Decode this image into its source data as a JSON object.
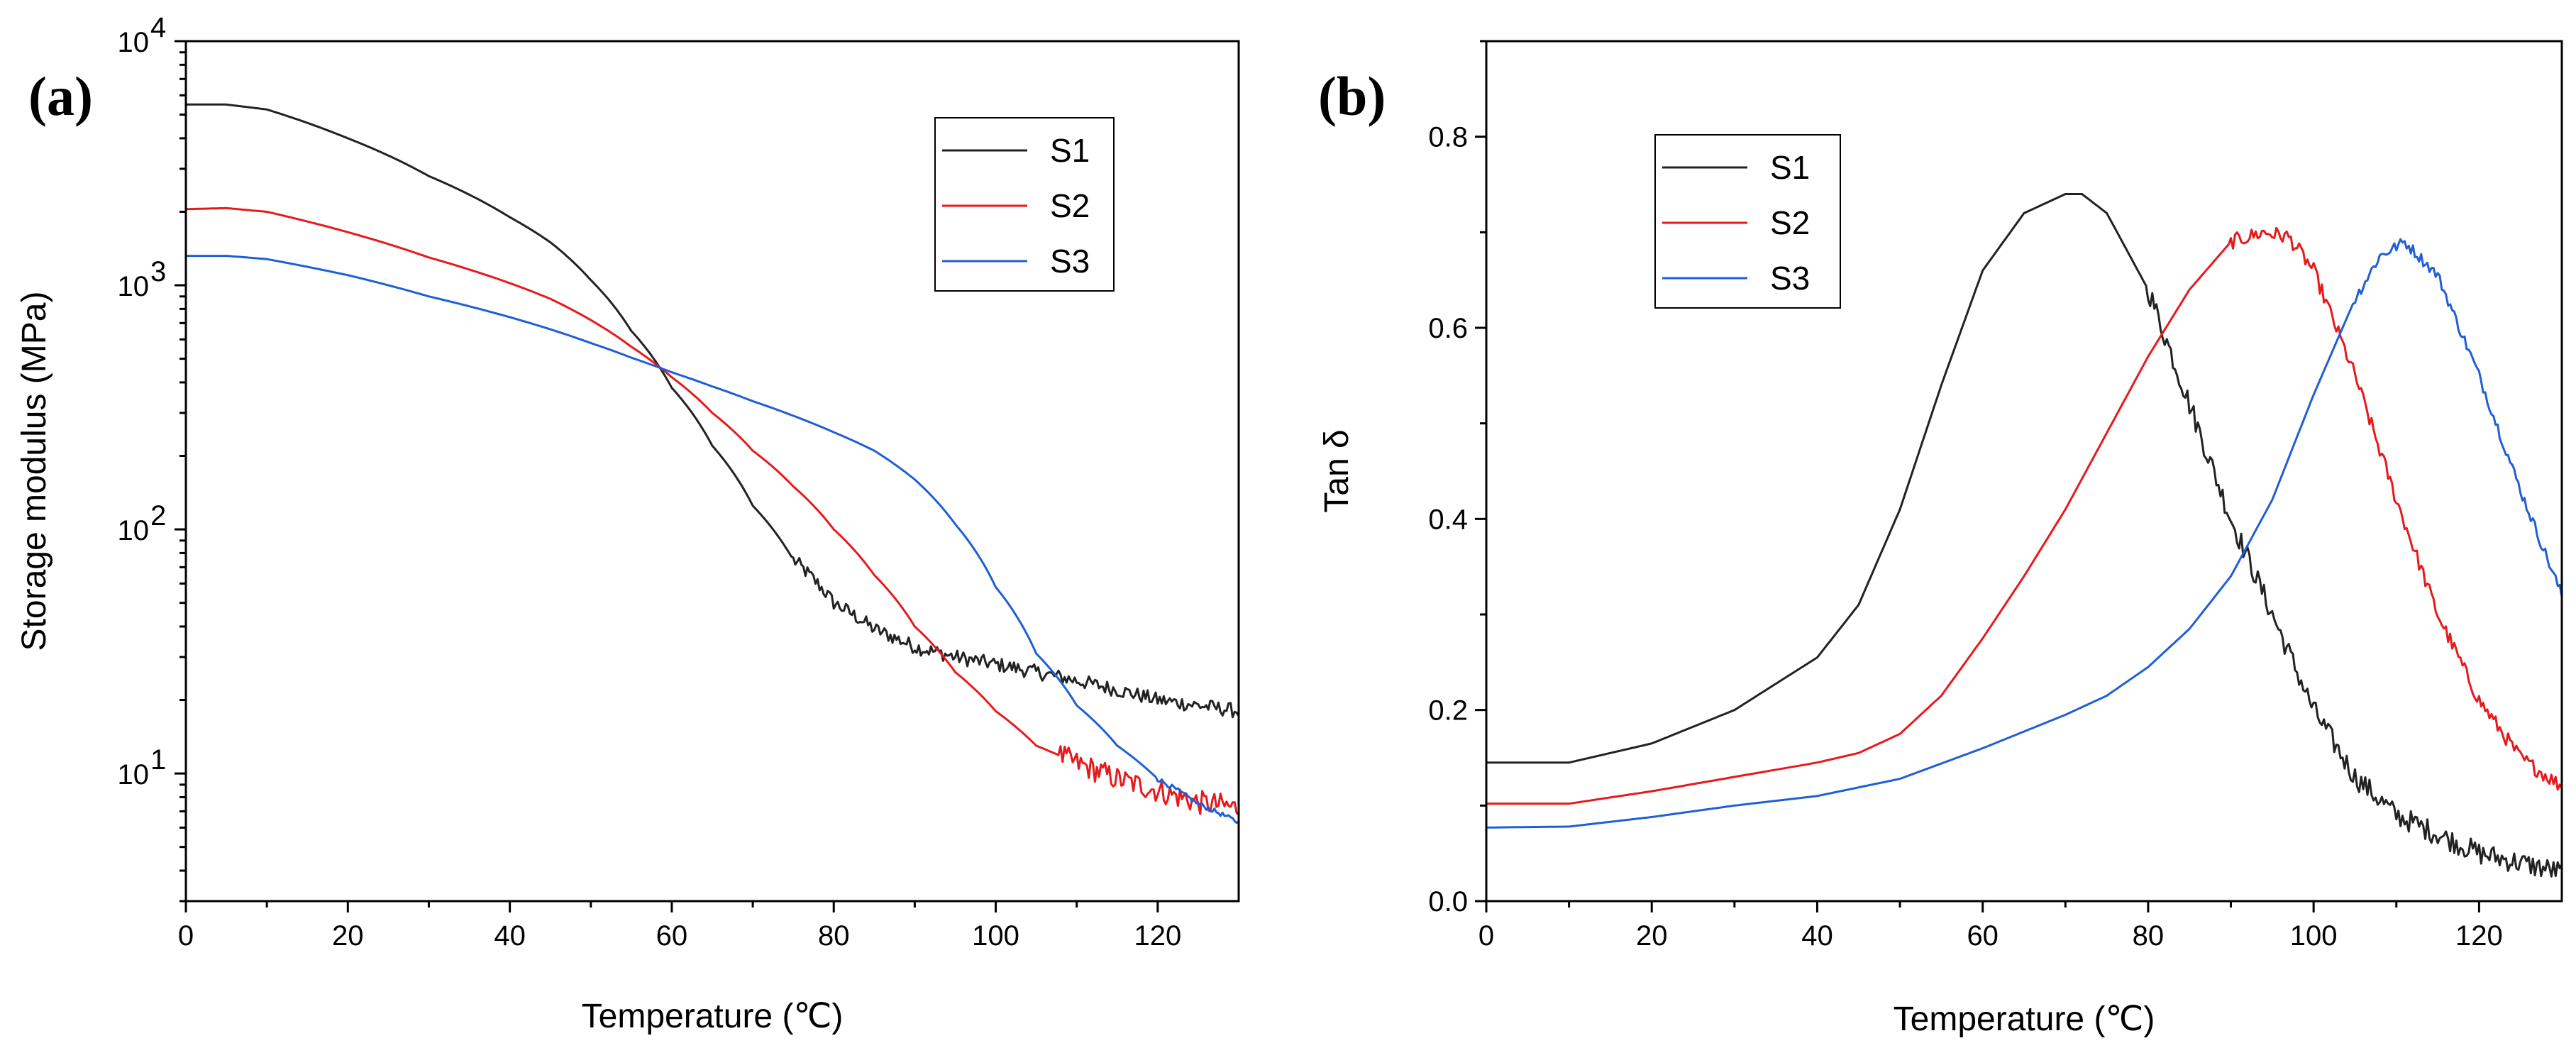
{
  "colors": {
    "S1": "#222222",
    "S2": "#e8191c",
    "S3": "#1f5fd6"
  },
  "chart_data": [
    {
      "id": "a",
      "panel_label": "(a)",
      "type": "line",
      "xlabel": "Temperature (℃)",
      "ylabel": "Storage modulus (MPa)",
      "yscale": "log",
      "xlim": [
        0,
        130
      ],
      "ylim": [
        3,
        10000
      ],
      "xticks": [
        0,
        20,
        40,
        60,
        80,
        100,
        120
      ],
      "xtick_labels": [
        "0",
        "20",
        "40",
        "60",
        "80",
        "100",
        "120"
      ],
      "yticks": [
        10,
        100,
        1000,
        10000
      ],
      "ytick_labels": [
        {
          "base": "10",
          "exp": "1"
        },
        {
          "base": "10",
          "exp": "2"
        },
        {
          "base": "10",
          "exp": "3"
        },
        {
          "base": "10",
          "exp": "4"
        }
      ],
      "legend": {
        "placement": "top-right",
        "entries": [
          "S1",
          "S2",
          "S3"
        ]
      },
      "series": [
        {
          "name": "S1",
          "noise": 0.03,
          "noise_start": 75,
          "x": [
            0,
            5,
            10,
            20,
            30,
            40,
            45,
            50,
            55,
            60,
            65,
            70,
            75,
            80,
            85,
            90,
            95,
            100,
            105,
            110,
            115,
            120,
            125,
            130
          ],
          "y": [
            5500,
            5500,
            5250,
            4000,
            2800,
            1900,
            1500,
            1050,
            650,
            380,
            220,
            125,
            75,
            50,
            39,
            33,
            30,
            28,
            26,
            24,
            22,
            20,
            19,
            18
          ]
        },
        {
          "name": "S2",
          "noise": 0.05,
          "noise_start": 108,
          "x": [
            0,
            5,
            10,
            20,
            30,
            40,
            45,
            50,
            55,
            60,
            65,
            70,
            75,
            80,
            85,
            90,
            95,
            100,
            105,
            110,
            115,
            120,
            125,
            128,
            130
          ],
          "y": [
            2050,
            2070,
            2000,
            1650,
            1300,
            1020,
            880,
            720,
            560,
            420,
            300,
            210,
            150,
            100,
            65,
            40,
            26,
            18,
            13,
            11,
            9.5,
            8.5,
            7.6,
            7.4,
            7.2
          ]
        },
        {
          "name": "S3",
          "noise": 0.01,
          "noise_start": 120,
          "x": [
            0,
            5,
            10,
            20,
            30,
            40,
            45,
            50,
            55,
            60,
            65,
            70,
            75,
            80,
            85,
            90,
            95,
            100,
            105,
            110,
            115,
            120,
            125,
            130
          ],
          "y": [
            1320,
            1320,
            1280,
            1100,
            900,
            740,
            660,
            580,
            505,
            440,
            385,
            335,
            292,
            250,
            210,
            160,
            105,
            58,
            31,
            19,
            13,
            9.5,
            7.5,
            6.3
          ]
        }
      ]
    },
    {
      "id": "b",
      "panel_label": "(b)",
      "type": "line",
      "xlabel": "Temperature (℃)",
      "ylabel": "Tan δ",
      "yscale": "linear",
      "xlim": [
        0,
        130
      ],
      "ylim": [
        0.0,
        0.9
      ],
      "xticks": [
        0,
        20,
        40,
        60,
        80,
        100,
        120
      ],
      "xtick_labels": [
        "0",
        "20",
        "40",
        "60",
        "80",
        "100",
        "120"
      ],
      "yticks": [
        0.0,
        0.2,
        0.4,
        0.6,
        0.8
      ],
      "ytick_labels": [
        "0.0",
        "0.2",
        "0.4",
        "0.6",
        "0.8"
      ],
      "legend": {
        "placement": "top-left",
        "entries": [
          "S1",
          "S2",
          "S3"
        ]
      },
      "series": [
        {
          "name": "S1",
          "noise": 0.012,
          "noise_start": 80,
          "x": [
            0,
            10,
            20,
            30,
            40,
            45,
            50,
            55,
            60,
            65,
            70,
            72,
            75,
            80,
            85,
            90,
            95,
            100,
            105,
            110,
            115,
            120,
            125,
            130
          ],
          "y": [
            0.145,
            0.145,
            0.165,
            0.2,
            0.255,
            0.31,
            0.41,
            0.54,
            0.66,
            0.72,
            0.74,
            0.74,
            0.72,
            0.64,
            0.52,
            0.4,
            0.3,
            0.2,
            0.13,
            0.09,
            0.07,
            0.05,
            0.04,
            0.03
          ]
        },
        {
          "name": "S2",
          "noise": 0.008,
          "noise_start": 90,
          "x": [
            0,
            10,
            20,
            30,
            40,
            45,
            50,
            55,
            60,
            65,
            70,
            75,
            80,
            85,
            90,
            94,
            97,
            100,
            105,
            110,
            115,
            120,
            125,
            130
          ],
          "y": [
            0.102,
            0.102,
            0.115,
            0.13,
            0.145,
            0.155,
            0.175,
            0.215,
            0.275,
            0.34,
            0.41,
            0.49,
            0.57,
            0.64,
            0.69,
            0.7,
            0.695,
            0.66,
            0.55,
            0.42,
            0.3,
            0.21,
            0.15,
            0.12
          ]
        },
        {
          "name": "S3",
          "noise": 0.006,
          "noise_start": 105,
          "x": [
            0,
            10,
            20,
            30,
            40,
            50,
            60,
            70,
            75,
            80,
            85,
            90,
            95,
            100,
            105,
            108,
            111,
            115,
            120,
            125,
            130
          ],
          "y": [
            0.077,
            0.078,
            0.088,
            0.1,
            0.11,
            0.128,
            0.16,
            0.195,
            0.215,
            0.245,
            0.285,
            0.34,
            0.42,
            0.53,
            0.63,
            0.675,
            0.69,
            0.655,
            0.55,
            0.43,
            0.32
          ]
        }
      ]
    }
  ]
}
